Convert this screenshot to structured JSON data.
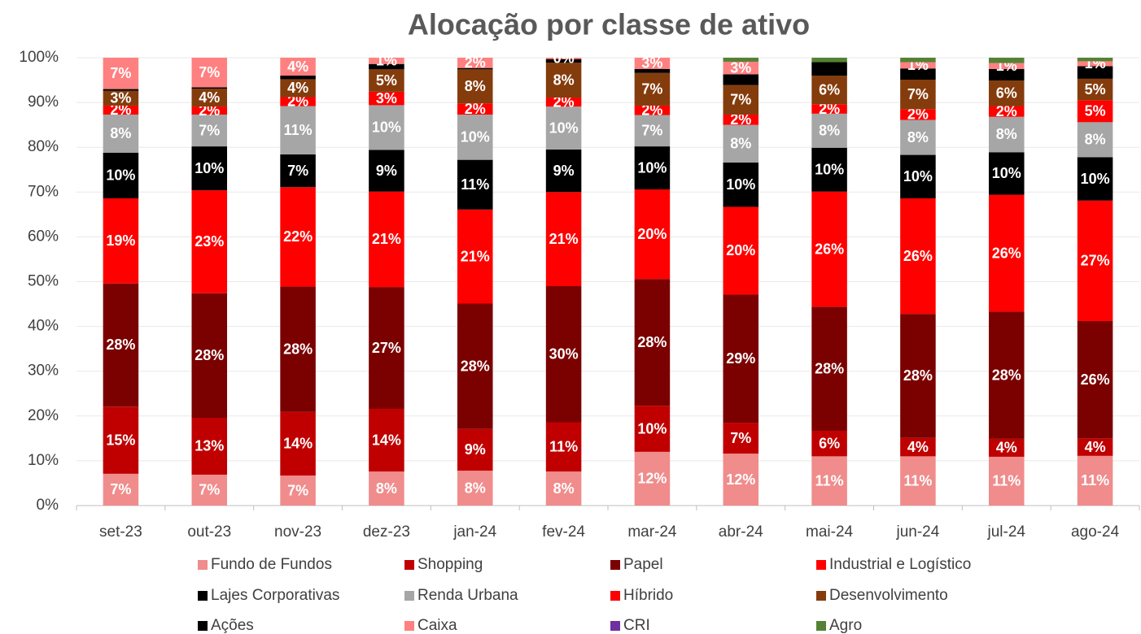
{
  "chart_data": {
    "type": "stacked_bar",
    "title": "Alocação por classe de ativo",
    "categories": [
      "set-23",
      "out-23",
      "nov-23",
      "dez-23",
      "jan-24",
      "fev-24",
      "mar-24",
      "abr-24",
      "mai-24",
      "jun-24",
      "jul-24",
      "ago-24"
    ],
    "ylim": [
      0,
      100
    ],
    "yticks": [
      {
        "value": 0,
        "label": "0%"
      },
      {
        "value": 10,
        "label": "10%"
      },
      {
        "value": 20,
        "label": "20%"
      },
      {
        "value": 30,
        "label": "30%"
      },
      {
        "value": 40,
        "label": "40%"
      },
      {
        "value": 50,
        "label": "50%"
      },
      {
        "value": 60,
        "label": "60%"
      },
      {
        "value": 70,
        "label": "70%"
      },
      {
        "value": 80,
        "label": "80%"
      },
      {
        "value": 90,
        "label": "90%"
      },
      {
        "value": 100,
        "label": "100%"
      }
    ],
    "grid": true,
    "series": [
      {
        "name": "Fundo de Fundos",
        "color": "#f08c8c",
        "values": [
          7.1,
          6.9,
          6.7,
          7.6,
          7.8,
          7.6,
          12,
          11.6,
          11,
          11,
          10.9,
          11.1
        ],
        "value_labels": [
          "7%",
          "7%",
          "7%",
          "8%",
          "8%",
          "8%",
          "12%",
          "12%",
          "11%",
          "11%",
          "11%",
          "11%"
        ]
      },
      {
        "name": "Shopping",
        "color": "#c00000",
        "values": [
          15,
          12.7,
          14.2,
          14,
          9.3,
          11,
          10.3,
          6.9,
          5.7,
          4.1,
          4,
          3.9
        ],
        "value_labels": [
          "15%",
          "13%",
          "14%",
          "14%",
          "9%",
          "11%",
          "10%",
          "7%",
          "6%",
          "4%",
          "4%",
          "4%"
        ]
      },
      {
        "name": "Papel",
        "color": "#7b0000",
        "values": [
          27.5,
          27.8,
          28,
          27.2,
          28,
          30.4,
          28.3,
          28.6,
          27.7,
          27.7,
          28.4,
          26.2
        ],
        "value_labels": [
          "28%",
          "28%",
          "28%",
          "27%",
          "28%",
          "30%",
          "28%",
          "29%",
          "28%",
          "28%",
          "28%",
          "26%"
        ]
      },
      {
        "name": "Industrial e Logístico",
        "color": "#ff0000",
        "values": [
          19,
          23,
          22.2,
          21.3,
          21,
          21,
          20,
          19.6,
          25.7,
          25.8,
          26.1,
          26.9
        ],
        "value_labels": [
          "19%",
          "23%",
          "22%",
          "21%",
          "21%",
          "21%",
          "20%",
          "20%",
          "26%",
          "26%",
          "26%",
          "27%"
        ]
      },
      {
        "name": "Lajes Corporativas",
        "color": "#000000",
        "values": [
          10.2,
          9.8,
          7.3,
          9.3,
          11.1,
          9.5,
          9.6,
          9.9,
          9.8,
          9.7,
          9.5,
          9.7
        ],
        "value_labels": [
          "10%",
          "10%",
          "7%",
          "9%",
          "11%",
          "9%",
          "10%",
          "10%",
          "10%",
          "10%",
          "10%",
          "10%"
        ]
      },
      {
        "name": "Renda Urbana",
        "color": "#a6a6a6",
        "values": [
          8.5,
          7.1,
          10.8,
          10,
          10.1,
          9.6,
          7,
          8.4,
          7.6,
          7.8,
          7.9,
          7.8
        ],
        "value_labels": [
          "8%",
          "7%",
          "11%",
          "10%",
          "10%",
          "10%",
          "7%",
          "8%",
          "8%",
          "8%",
          "8%",
          "8%"
        ]
      },
      {
        "name": "Híbrido",
        "color": "#ff0000",
        "values": [
          2,
          1.8,
          2,
          3,
          2.5,
          2,
          2.1,
          2.3,
          2.1,
          2.4,
          2.4,
          4.9
        ],
        "value_labels": [
          "2%",
          "2%",
          "2%",
          "3%",
          "2%",
          "2%",
          "2%",
          "2%",
          "2%",
          "2%",
          "2%",
          "5%"
        ]
      },
      {
        "name": "Desenvolvimento",
        "color": "#843c0c",
        "values": [
          3.3,
          4,
          4,
          5,
          7.6,
          7.8,
          7.3,
          6.6,
          6.4,
          6.6,
          5.7,
          4.8
        ],
        "value_labels": [
          "3%",
          "4%",
          "4%",
          "5%",
          "8%",
          "8%",
          "7%",
          "7%",
          "6%",
          "7%",
          "6%",
          "5%"
        ]
      },
      {
        "name": "Ações",
        "color": "#000000",
        "values": [
          0.4,
          0.3,
          0.8,
          1.2,
          0.3,
          0.8,
          0.9,
          2.4,
          3,
          2.5,
          2.6,
          2.8
        ],
        "value_labels": [
          null,
          null,
          null,
          null,
          null,
          null,
          null,
          null,
          null,
          null,
          null,
          null
        ]
      },
      {
        "name": "Caixa",
        "color": "#ff8080",
        "values": [
          7,
          6.6,
          4,
          1.4,
          2.3,
          0.3,
          2.5,
          2.8,
          0,
          1.4,
          1.3,
          1.1
        ],
        "value_labels": [
          "7%",
          "7%",
          "4%",
          "1%",
          "2%",
          "0%",
          "3%",
          "3%",
          null,
          "1%",
          "1%",
          "1%"
        ]
      },
      {
        "name": "CRI",
        "color": "#7030a0",
        "values": [
          0,
          0,
          0,
          0,
          0,
          0,
          0,
          0,
          0,
          0,
          0,
          0
        ],
        "value_labels": [
          null,
          null,
          null,
          null,
          null,
          null,
          null,
          null,
          null,
          null,
          null,
          null
        ]
      },
      {
        "name": "Agro",
        "color": "#548235",
        "values": [
          0,
          0,
          0,
          0,
          0,
          0,
          0,
          0.9,
          1,
          1,
          1.2,
          0.8
        ],
        "value_labels": [
          null,
          null,
          null,
          null,
          null,
          null,
          null,
          null,
          null,
          null,
          null,
          null
        ]
      }
    ]
  }
}
